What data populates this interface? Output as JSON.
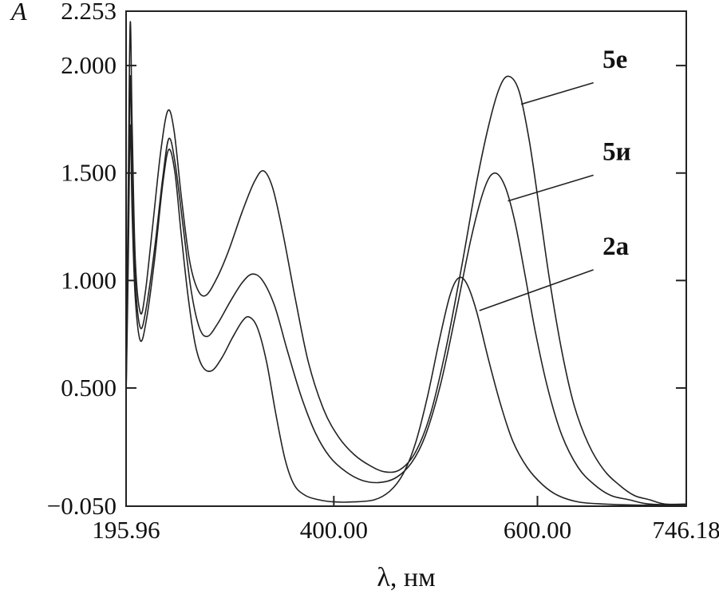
{
  "figure": {
    "description": "UV-Vis absorption spectrum with three labeled curves"
  },
  "chart_data": {
    "type": "line",
    "title": "",
    "xlabel": "λ, нм",
    "ylabel": "A",
    "xlim": [
      195.96,
      746.18
    ],
    "ylim": [
      -0.05,
      2.253
    ],
    "grid": false,
    "legend_position": "annotated-on-plot",
    "line_color": "#222222",
    "x_ticks": [
      {
        "v": 195.96,
        "label": "195.96",
        "tick": false
      },
      {
        "v": 400.0,
        "label": "400.00",
        "tick": true
      },
      {
        "v": 600.0,
        "label": "600.00",
        "tick": true
      },
      {
        "v": 746.18,
        "label": "746.18",
        "tick": false
      }
    ],
    "y_ticks": [
      {
        "v": 2.253,
        "label": "2.253",
        "tick": false
      },
      {
        "v": 2.0,
        "label": "2.000",
        "tick": true
      },
      {
        "v": 1.5,
        "label": "1.500",
        "tick": true
      },
      {
        "v": 1.0,
        "label": "1.000",
        "tick": true
      },
      {
        "v": 0.5,
        "label": "0.500",
        "tick": true
      },
      {
        "v": -0.05,
        "label": "−0.050",
        "tick": true
      }
    ],
    "series": [
      {
        "name": "5е",
        "points": [
          [
            196,
            0.55
          ],
          [
            198,
            1.4
          ],
          [
            200,
            2.2
          ],
          [
            202,
            1.7
          ],
          [
            205,
            1.1
          ],
          [
            210,
            0.85
          ],
          [
            215,
            0.95
          ],
          [
            222,
            1.25
          ],
          [
            230,
            1.6
          ],
          [
            237,
            1.79
          ],
          [
            243,
            1.7
          ],
          [
            250,
            1.4
          ],
          [
            258,
            1.1
          ],
          [
            266,
            0.96
          ],
          [
            274,
            0.93
          ],
          [
            284,
            1.0
          ],
          [
            296,
            1.13
          ],
          [
            310,
            1.32
          ],
          [
            322,
            1.46
          ],
          [
            331,
            1.51
          ],
          [
            340,
            1.43
          ],
          [
            350,
            1.22
          ],
          [
            362,
            0.92
          ],
          [
            375,
            0.62
          ],
          [
            390,
            0.4
          ],
          [
            405,
            0.27
          ],
          [
            420,
            0.19
          ],
          [
            435,
            0.14
          ],
          [
            450,
            0.11
          ],
          [
            465,
            0.12
          ],
          [
            480,
            0.2
          ],
          [
            495,
            0.38
          ],
          [
            510,
            0.68
          ],
          [
            525,
            1.05
          ],
          [
            540,
            1.45
          ],
          [
            552,
            1.72
          ],
          [
            563,
            1.9
          ],
          [
            572,
            1.95
          ],
          [
            582,
            1.88
          ],
          [
            592,
            1.65
          ],
          [
            602,
            1.33
          ],
          [
            612,
            1.0
          ],
          [
            624,
            0.67
          ],
          [
            636,
            0.42
          ],
          [
            650,
            0.24
          ],
          [
            665,
            0.12
          ],
          [
            680,
            0.05
          ],
          [
            695,
            0.0
          ],
          [
            710,
            -0.02
          ],
          [
            725,
            -0.04
          ],
          [
            746,
            -0.04
          ]
        ]
      },
      {
        "name": "5и",
        "points": [
          [
            196,
            0.5
          ],
          [
            198,
            1.2
          ],
          [
            200,
            1.95
          ],
          [
            202,
            1.45
          ],
          [
            205,
            1.0
          ],
          [
            210,
            0.78
          ],
          [
            216,
            0.88
          ],
          [
            224,
            1.15
          ],
          [
            232,
            1.48
          ],
          [
            238,
            1.66
          ],
          [
            244,
            1.55
          ],
          [
            252,
            1.25
          ],
          [
            260,
            0.95
          ],
          [
            268,
            0.78
          ],
          [
            276,
            0.74
          ],
          [
            286,
            0.8
          ],
          [
            298,
            0.9
          ],
          [
            310,
            0.99
          ],
          [
            320,
            1.03
          ],
          [
            330,
            1.0
          ],
          [
            342,
            0.88
          ],
          [
            354,
            0.68
          ],
          [
            368,
            0.46
          ],
          [
            382,
            0.29
          ],
          [
            396,
            0.18
          ],
          [
            412,
            0.11
          ],
          [
            428,
            0.07
          ],
          [
            444,
            0.06
          ],
          [
            460,
            0.08
          ],
          [
            476,
            0.15
          ],
          [
            490,
            0.28
          ],
          [
            505,
            0.52
          ],
          [
            520,
            0.85
          ],
          [
            535,
            1.2
          ],
          [
            548,
            1.43
          ],
          [
            558,
            1.5
          ],
          [
            568,
            1.44
          ],
          [
            578,
            1.27
          ],
          [
            588,
            1.02
          ],
          [
            598,
            0.76
          ],
          [
            610,
            0.5
          ],
          [
            624,
            0.28
          ],
          [
            640,
            0.13
          ],
          [
            656,
            0.05
          ],
          [
            672,
            0.0
          ],
          [
            690,
            -0.02
          ],
          [
            710,
            -0.04
          ],
          [
            746,
            -0.045
          ]
        ]
      },
      {
        "name": "2а",
        "points": [
          [
            196,
            0.48
          ],
          [
            198,
            1.05
          ],
          [
            200,
            1.72
          ],
          [
            202,
            1.3
          ],
          [
            205,
            0.92
          ],
          [
            210,
            0.72
          ],
          [
            216,
            0.82
          ],
          [
            224,
            1.1
          ],
          [
            232,
            1.45
          ],
          [
            238,
            1.61
          ],
          [
            244,
            1.5
          ],
          [
            250,
            1.22
          ],
          [
            257,
            0.92
          ],
          [
            264,
            0.7
          ],
          [
            271,
            0.6
          ],
          [
            280,
            0.58
          ],
          [
            290,
            0.64
          ],
          [
            300,
            0.73
          ],
          [
            310,
            0.81
          ],
          [
            317,
            0.83
          ],
          [
            325,
            0.78
          ],
          [
            334,
            0.62
          ],
          [
            343,
            0.38
          ],
          [
            352,
            0.17
          ],
          [
            361,
            0.05
          ],
          [
            372,
            0.0
          ],
          [
            385,
            -0.02
          ],
          [
            400,
            -0.03
          ],
          [
            420,
            -0.03
          ],
          [
            440,
            -0.02
          ],
          [
            455,
            0.02
          ],
          [
            468,
            0.1
          ],
          [
            480,
            0.24
          ],
          [
            492,
            0.46
          ],
          [
            504,
            0.73
          ],
          [
            514,
            0.93
          ],
          [
            522,
            1.01
          ],
          [
            530,
            0.99
          ],
          [
            540,
            0.86
          ],
          [
            552,
            0.63
          ],
          [
            564,
            0.42
          ],
          [
            576,
            0.25
          ],
          [
            590,
            0.13
          ],
          [
            605,
            0.05
          ],
          [
            620,
            0.0
          ],
          [
            640,
            -0.03
          ],
          [
            665,
            -0.04
          ],
          [
            700,
            -0.045
          ],
          [
            746,
            -0.045
          ]
        ]
      }
    ],
    "annotations": [
      {
        "label": "5е",
        "text_at": [
          664,
          1.99
        ],
        "line_from": [
          655,
          1.92
        ],
        "line_to": [
          584,
          1.82
        ]
      },
      {
        "label": "5и",
        "text_at": [
          664,
          1.56
        ],
        "line_from": [
          655,
          1.49
        ],
        "line_to": [
          571,
          1.37
        ]
      },
      {
        "label": "2а",
        "text_at": [
          664,
          1.12
        ],
        "line_from": [
          655,
          1.05
        ],
        "line_to": [
          543,
          0.86
        ]
      }
    ]
  }
}
